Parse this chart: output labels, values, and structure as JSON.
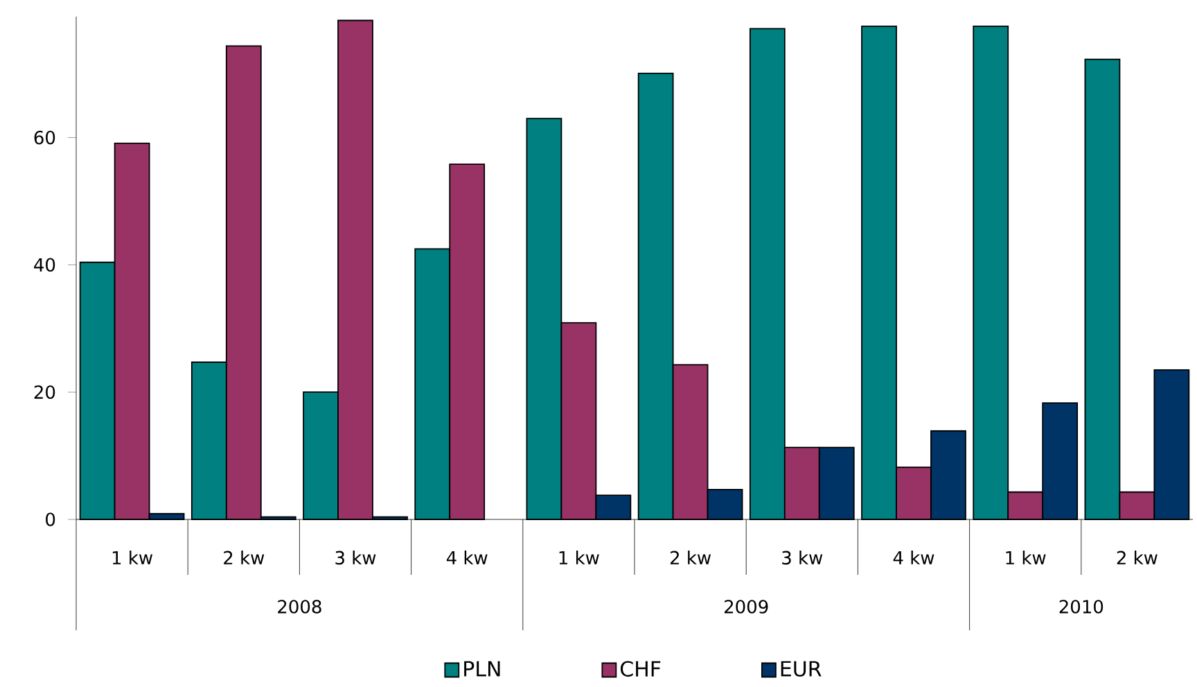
{
  "chart_data": {
    "type": "bar",
    "categories": [
      "1 kw",
      "2 kw",
      "3 kw",
      "4 kw",
      "1 kw",
      "2 kw",
      "3 kw",
      "4 kw",
      "1 kw",
      "2 kw"
    ],
    "annotations": [
      "2008",
      "2009",
      "2010"
    ],
    "series": [
      {
        "name": "PLN",
        "color": "#008080",
        "values": [
          40.4,
          24.7,
          20.0,
          42.5,
          63.0,
          70.1,
          77.1,
          77.5,
          77.5,
          72.3
        ]
      },
      {
        "name": "CHF",
        "color": "#993366",
        "values": [
          59.1,
          74.4,
          78.4,
          55.8,
          30.9,
          24.3,
          11.3,
          8.2,
          4.3,
          4.3
        ]
      },
      {
        "name": "EUR",
        "color": "#003366",
        "values": [
          0.9,
          0.4,
          0.4,
          null,
          3.8,
          4.7,
          11.3,
          13.9,
          18.3,
          23.5
        ]
      }
    ],
    "ylim": [
      0,
      79
    ],
    "yticks": [
      0,
      20,
      40,
      60
    ],
    "grid": false,
    "legend": "bottom"
  }
}
